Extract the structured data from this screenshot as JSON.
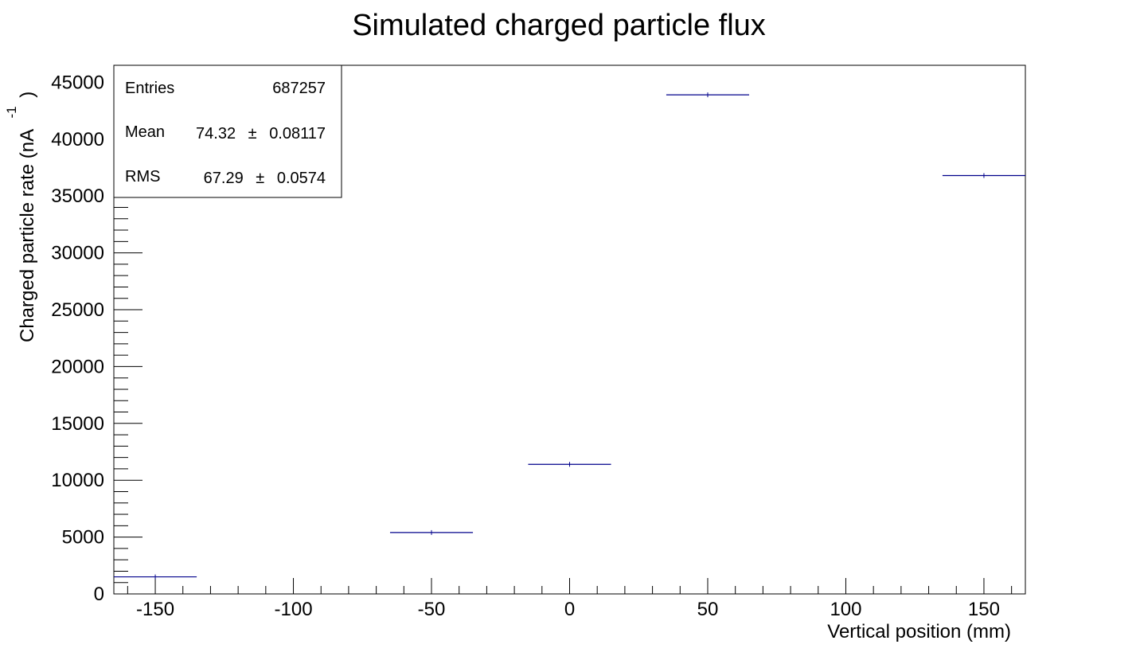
{
  "chart_data": {
    "type": "histogram",
    "title": "Simulated charged particle flux",
    "xlabel": "Vertical position (mm)",
    "ylabel": "Charged particle rate (nA",
    "ylabel_superscript": "-1",
    "ylabel_close": ")",
    "xlim": [
      -165,
      165
    ],
    "ylim": [
      0,
      46500
    ],
    "x_major_ticks": [
      -150,
      -100,
      -50,
      0,
      50,
      100,
      150
    ],
    "y_major_ticks": [
      0,
      5000,
      10000,
      15000,
      20000,
      25000,
      30000,
      35000,
      40000,
      45000
    ],
    "grid": false,
    "series_color": "#00008b",
    "bins": [
      {
        "x": -150,
        "xmin": -165,
        "xmax": -135,
        "y": 1500
      },
      {
        "x": -50,
        "xmin": -65,
        "xmax": -35,
        "y": 5400
      },
      {
        "x": 0,
        "xmin": -15,
        "xmax": 15,
        "y": 11400
      },
      {
        "x": 50,
        "xmin": 35,
        "xmax": 65,
        "y": 43900
      },
      {
        "x": 150,
        "xmin": 135,
        "xmax": 165,
        "y": 36800
      }
    ],
    "stats": {
      "entries_label": "Entries",
      "entries_value": "687257",
      "mean_label": "Mean",
      "mean_value": "74.32",
      "mean_error": "0.08117",
      "rms_label": "RMS",
      "rms_value": "67.29",
      "rms_error": "0.0574",
      "pm_symbol": "±"
    }
  }
}
